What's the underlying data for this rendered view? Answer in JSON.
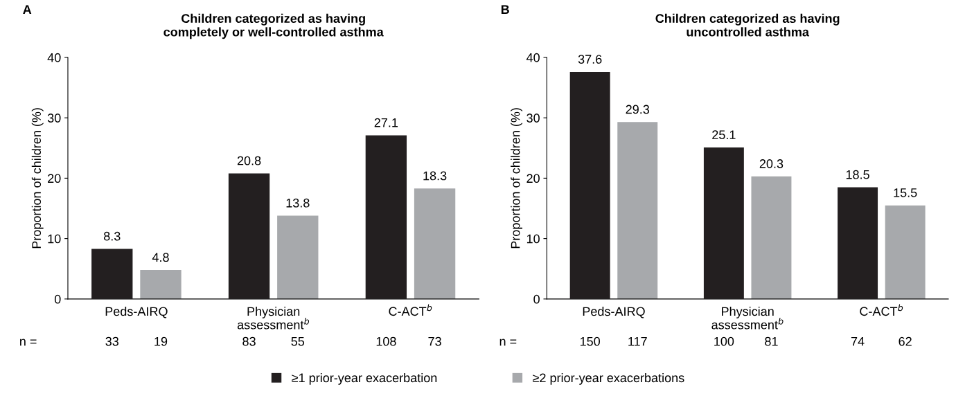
{
  "chart_data": [
    {
      "type": "bar",
      "title": "Children categorized as having\ncompletely or well-controlled asthma",
      "ylabel": "Proportion of children (%)",
      "categories": [
        "Peds-AIRQ",
        "Physician\nassessment$^{b}$",
        "C-ACT$^{b}$"
      ],
      "series": [
        {
          "name": "≥1 prior-year exacerbation",
          "color": "#231f20",
          "values": [
            8.3,
            20.8,
            27.1
          ]
        },
        {
          "name": "≥2 prior-year exacerbations",
          "color": "#a7a9ac",
          "values": [
            4.8,
            13.8,
            18.3
          ]
        }
      ],
      "ylim": [
        0,
        40
      ],
      "yticks": [
        0,
        10,
        20,
        30,
        40
      ],
      "data_labels": true,
      "grid": false,
      "legend": "bottom",
      "annotations": [
        "A",
        "n =",
        "33",
        "19",
        "83",
        "55",
        "108",
        "73"
      ]
    },
    {
      "type": "bar",
      "title": "Children categorized as having\nuncontrolled asthma",
      "ylabel": "Proportion of children (%)",
      "categories": [
        "Peds-AIRQ",
        "Physician\nassessment$^{b}$",
        "C-ACT$^{b}$"
      ],
      "series": [
        {
          "color": "#231f20",
          "values": [
            37.6,
            25.1,
            18.5
          ]
        },
        {
          "color": "#a7a9ac",
          "values": [
            29.3,
            20.3,
            15.5
          ]
        }
      ],
      "ylim": [
        0,
        40
      ],
      "yticks": [
        0,
        10,
        20,
        30,
        40
      ],
      "data_labels": true,
      "grid": false,
      "annotations": [
        "B",
        "n =",
        "150",
        "117",
        "100",
        "81",
        "74",
        "62"
      ]
    }
  ]
}
